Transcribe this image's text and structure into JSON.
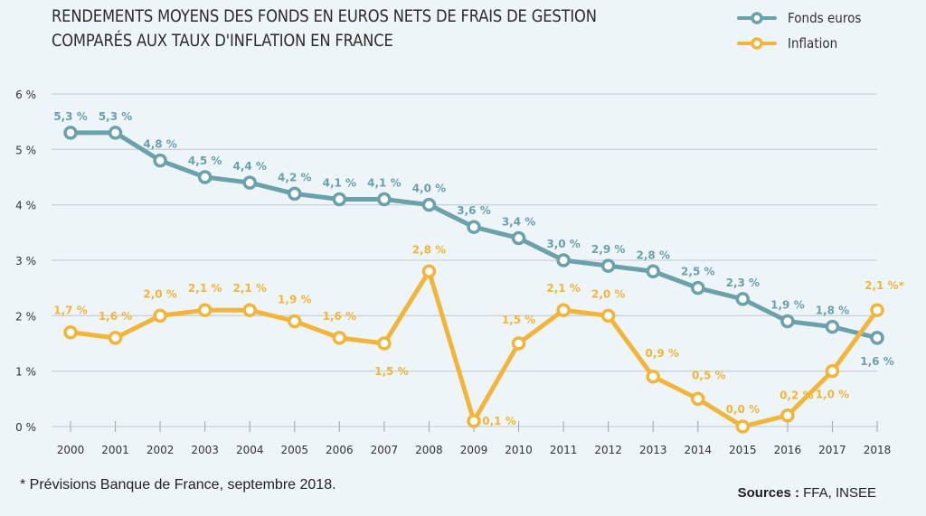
{
  "chart_data": {
    "type": "line",
    "title": "RENDEMENTS MOYENS DES FONDS EN EUROS NETS DE FRAIS DE GESTION COMPARÉS AUX TAUX D'INFLATION EN FRANCE",
    "title_lines": [
      "RENDEMENTS MOYENS DES FONDS EN EUROS NETS DE FRAIS DE GESTION",
      "COMPARÉS AUX TAUX D'INFLATION EN FRANCE"
    ],
    "xlabel": "",
    "ylabel": "",
    "x": [
      "2000",
      "2001",
      "2002",
      "2003",
      "2004",
      "2005",
      "2006",
      "2007",
      "2008",
      "2009",
      "2010",
      "2011",
      "2012",
      "2013",
      "2014",
      "2015",
      "2016",
      "2017",
      "2018"
    ],
    "ylim": [
      0,
      6
    ],
    "yticks": [
      0,
      1,
      2,
      3,
      4,
      5,
      6
    ],
    "ytick_labels": [
      "0 %",
      "1 %",
      "2 %",
      "3 %",
      "4 %",
      "5 %",
      "6 %"
    ],
    "grid": true,
    "legend_position": "top-right",
    "series": [
      {
        "name": "Fonds euros",
        "color": "#6aa1ab",
        "values": [
          5.3,
          5.3,
          4.8,
          4.5,
          4.4,
          4.2,
          4.1,
          4.1,
          4.0,
          3.6,
          3.4,
          3.0,
          2.9,
          2.8,
          2.5,
          2.3,
          1.9,
          1.8,
          1.6
        ],
        "labels": [
          "5,3 %",
          "5,3 %",
          "4,8 %",
          "4,5 %",
          "4,4 %",
          "4,2 %",
          "4,1 %",
          "4,1 %",
          "4,0 %",
          "3,6 %",
          "3,4 %",
          "3,0 %",
          "2,9 %",
          "2,8 %",
          "2,5 %",
          "2,3 %",
          "1,9 %",
          "1,8 %",
          "1,6 %"
        ]
      },
      {
        "name": "Inflation",
        "color": "#f2b53c",
        "values": [
          1.7,
          1.6,
          2.0,
          2.1,
          2.1,
          1.9,
          1.6,
          1.5,
          2.8,
          0.1,
          1.5,
          2.1,
          2.0,
          0.9,
          0.5,
          0.0,
          0.2,
          1.0,
          2.1
        ],
        "labels": [
          "1,7 %",
          "1,6 %",
          "2,0 %",
          "2,1 %",
          "2,1 %",
          "1,9 %",
          "1,6 %",
          "1,5 %",
          "2,8 %",
          "0,1 %",
          "1,5 %",
          "2,1 %",
          "2,0 %",
          "0,9 %",
          "0,5 %",
          "0,0 %",
          "0,2 %",
          "1,0 %",
          "2,1 %*"
        ]
      }
    ],
    "footnote": "* Prévisions Banque de France, septembre 2018.",
    "sources_label": "Sources :",
    "sources_value": " FFA, INSEE"
  }
}
